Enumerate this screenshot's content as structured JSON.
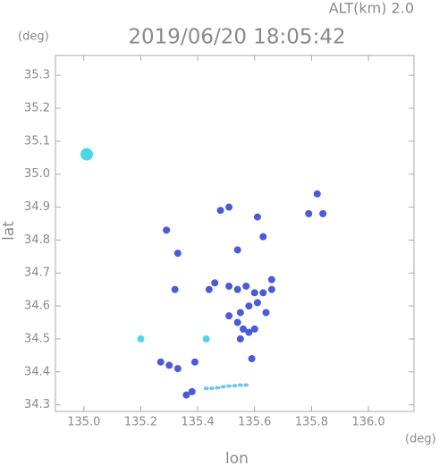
{
  "chart_data": {
    "type": "scatter",
    "title": "2019/06/20 18:05:42",
    "subtitle": "ALT(km) 2.0",
    "x_unit": "(deg)",
    "y_unit": "(deg)",
    "x_label": "lon",
    "y_label": "lat",
    "xlim": [
      134.9,
      136.16
    ],
    "ylim": [
      34.28,
      35.36
    ],
    "xticks": [
      {
        "value": 135,
        "label": "135.0"
      },
      135.2,
      135.4,
      135.6,
      135.8,
      {
        "value": 136,
        "label": "136.0"
      }
    ],
    "yticks": [
      34.3,
      34.4,
      34.5,
      34.6,
      34.7,
      34.8,
      34.9,
      {
        "value": 35,
        "label": "35.0"
      },
      35.1,
      35.2,
      35.3
    ],
    "series": [
      {
        "color": "#4a5ad8",
        "x": [
          135.48,
          135.51,
          135.61,
          135.82,
          135.79,
          135.84,
          135.29,
          135.33,
          135.54,
          135.63,
          135.44,
          135.46,
          135.32,
          135.51,
          135.54,
          135.57,
          135.6,
          135.63,
          135.66,
          135.66,
          135.51,
          135.55,
          135.58,
          135.61,
          135.64,
          135.56,
          135.58,
          135.55,
          135.6,
          135.54,
          135.59,
          135.27,
          135.3,
          135.33,
          135.39,
          135.36,
          135.38
        ],
        "y": [
          34.89,
          34.9,
          34.87,
          34.94,
          34.88,
          34.88,
          34.83,
          34.76,
          34.77,
          34.81,
          34.65,
          34.67,
          34.65,
          34.66,
          34.65,
          34.66,
          34.64,
          34.64,
          34.68,
          34.65,
          34.57,
          34.58,
          34.6,
          34.61,
          34.58,
          34.53,
          34.52,
          34.5,
          34.53,
          34.55,
          34.44,
          34.43,
          34.42,
          34.41,
          34.43,
          34.33,
          34.34
        ]
      },
      {
        "color": "#4fd6e6",
        "x": [
          135.01,
          135.2,
          135.43
        ],
        "y": [
          35.06,
          34.5,
          34.5
        ]
      },
      {
        "color": "#6ec6f0",
        "x": [
          135.43,
          135.45,
          135.47,
          135.49,
          135.51,
          135.53,
          135.55,
          135.57
        ],
        "y": [
          34.35,
          34.35,
          34.352,
          34.355,
          34.357,
          34.358,
          34.36,
          34.36
        ]
      }
    ]
  }
}
